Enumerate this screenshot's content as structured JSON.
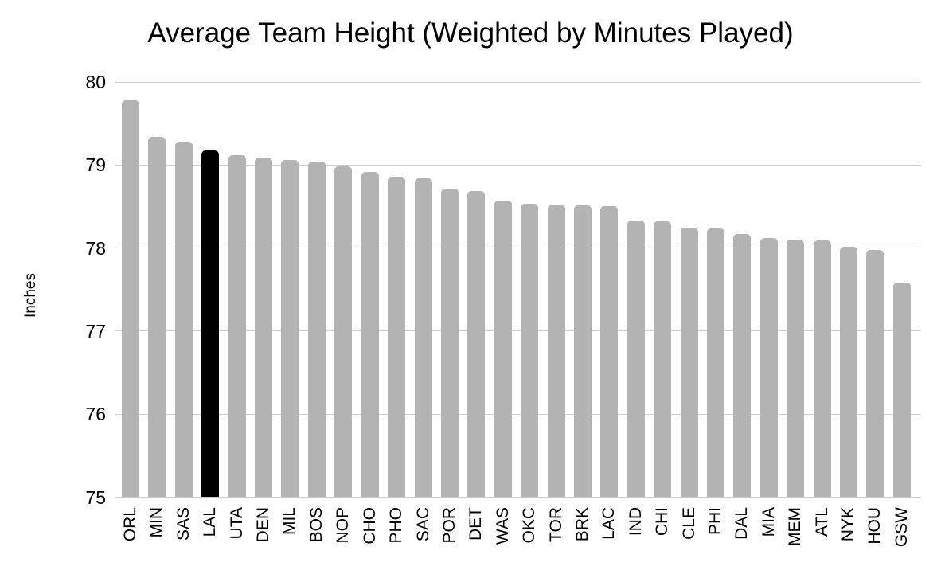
{
  "page": {
    "background": "#ffffff"
  },
  "chart_data": {
    "type": "bar",
    "title": "Average Team Height (Weighted by Minutes Played)",
    "xlabel": "",
    "ylabel": "Inches",
    "ylim": [
      75,
      80
    ],
    "yticks": [
      75,
      76,
      77,
      78,
      79,
      80
    ],
    "grid": true,
    "legend": false,
    "categories": [
      "ORL",
      "MIN",
      "SAS",
      "LAL",
      "UTA",
      "DEN",
      "MIL",
      "BOS",
      "NOP",
      "CHO",
      "PHO",
      "SAC",
      "POR",
      "DET",
      "WAS",
      "OKC",
      "TOR",
      "BRK",
      "LAC",
      "IND",
      "CHI",
      "CLE",
      "PHI",
      "DAL",
      "MIA",
      "MEM",
      "ATL",
      "NYK",
      "HOU",
      "GSW"
    ],
    "values": [
      79.78,
      79.34,
      79.28,
      79.18,
      79.12,
      79.09,
      79.06,
      79.04,
      78.98,
      78.92,
      78.86,
      78.84,
      78.72,
      78.69,
      78.57,
      78.53,
      78.52,
      78.51,
      78.5,
      78.33,
      78.32,
      78.25,
      78.24,
      78.17,
      78.12,
      78.1,
      78.09,
      78.02,
      77.98,
      77.58
    ],
    "highlight": {
      "category": "LAL",
      "color": "#000000"
    },
    "colors": {
      "bar": "#b3b3b3",
      "gridline": "#cccccc",
      "text": "#000000"
    }
  }
}
